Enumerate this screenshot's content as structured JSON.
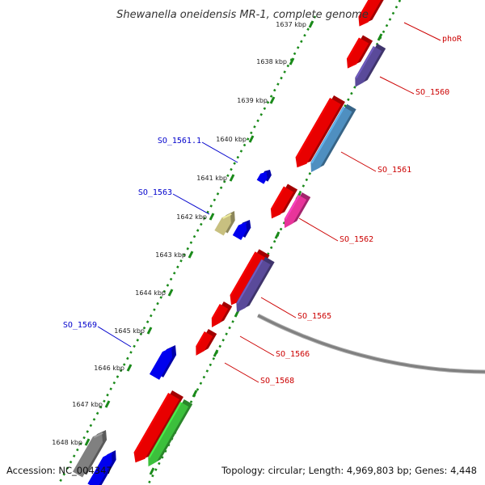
{
  "title": "Shewanella oneidensis MR-1, complete genome",
  "footer": {
    "accession": "Accession: NC_004347",
    "topology": "Topology: circular; Length: 4,969,803 bp; Genes: 4,448"
  },
  "colors": {
    "backbone": "#808080",
    "tick_line": "#1a8a1a",
    "reverse_strand_label": "#cc0000",
    "forward_strand_label": "#0000cc"
  },
  "ticks": [
    {
      "label": "1637 kbp"
    },
    {
      "label": "1638 kbp"
    },
    {
      "label": "1639 kbp"
    },
    {
      "label": "1640 kbp"
    },
    {
      "label": "1641 kbp"
    },
    {
      "label": "1642 kbp"
    },
    {
      "label": "1643 kbp"
    },
    {
      "label": "1644 kbp"
    },
    {
      "label": "1645 kbp"
    },
    {
      "label": "1646 kbp"
    },
    {
      "label": "1647 kbp"
    },
    {
      "label": "1648 kbp"
    }
  ],
  "features": [
    {
      "color": "#e80000"
    },
    {
      "color": "#e80000"
    },
    {
      "color": "#5a4a9a"
    },
    {
      "color": "#e80000"
    },
    {
      "color": "#4f8fc0"
    },
    {
      "color": "#e80000"
    },
    {
      "color": "#e8349a"
    },
    {
      "color": "#e80000"
    },
    {
      "color": "#5a4a9a"
    },
    {
      "color": "#e80000"
    },
    {
      "color": "#e80000"
    },
    {
      "color": "#e80000"
    },
    {
      "color": "#3cc03c"
    },
    {
      "color": "#0000ee"
    },
    {
      "color": "#c8c080"
    },
    {
      "color": "#0000ee"
    },
    {
      "color": "#0000ee"
    },
    {
      "color": "#808080"
    },
    {
      "color": "#0000ee"
    }
  ],
  "labels": [
    {
      "text": "phoR",
      "strand": "reverse"
    },
    {
      "text": "SO_1560",
      "strand": "reverse"
    },
    {
      "text": "SO_1561",
      "strand": "reverse"
    },
    {
      "text": "SO_1562",
      "strand": "reverse"
    },
    {
      "text": "SO_1565",
      "strand": "reverse"
    },
    {
      "text": "SO_1566",
      "strand": "reverse"
    },
    {
      "text": "SO_1568",
      "strand": "reverse"
    },
    {
      "text": "SO_1561.1",
      "strand": "forward"
    },
    {
      "text": "SO_1563",
      "strand": "forward"
    },
    {
      "text": "SO_1569",
      "strand": "forward"
    }
  ]
}
